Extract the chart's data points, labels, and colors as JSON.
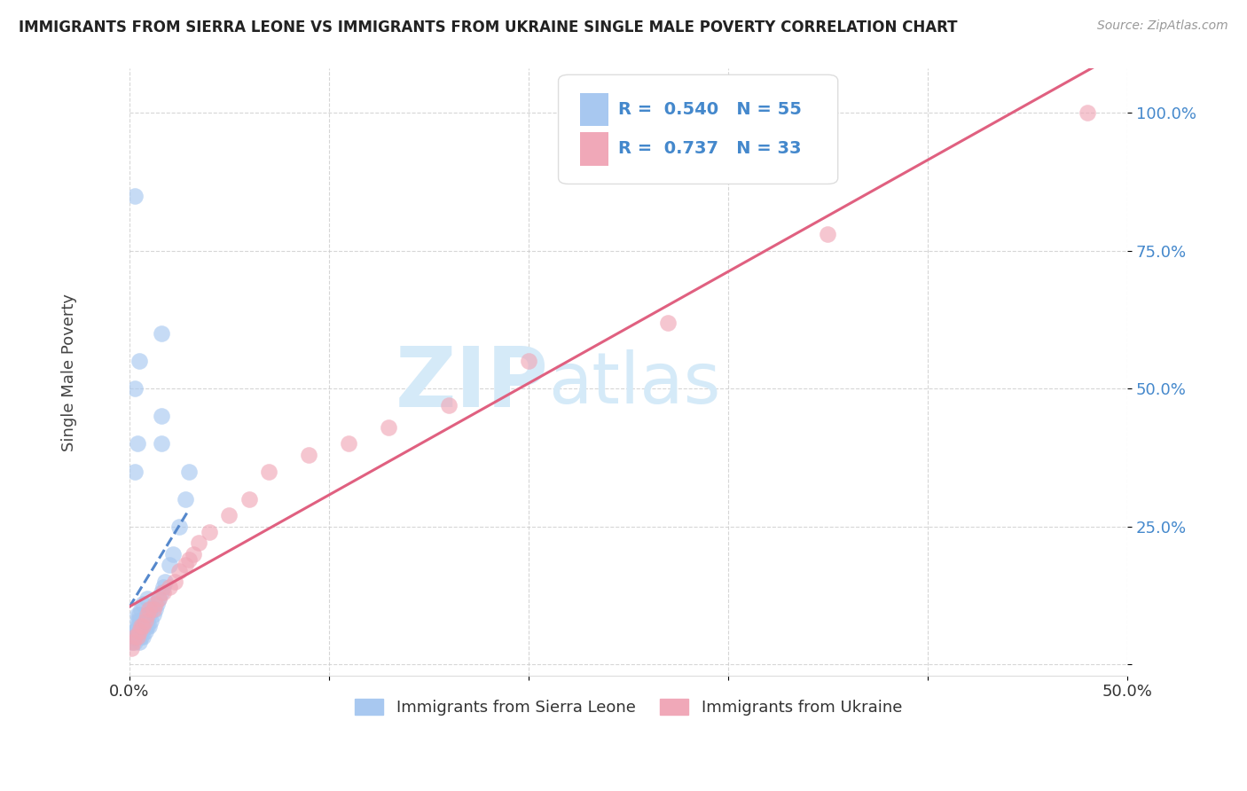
{
  "title": "IMMIGRANTS FROM SIERRA LEONE VS IMMIGRANTS FROM UKRAINE SINGLE MALE POVERTY CORRELATION CHART",
  "source": "Source: ZipAtlas.com",
  "ylabel": "Single Male Poverty",
  "xlim": [
    0.0,
    0.5
  ],
  "ylim": [
    -0.02,
    1.08
  ],
  "yticks": [
    0.0,
    0.25,
    0.5,
    0.75,
    1.0
  ],
  "ytick_labels": [
    "",
    "25.0%",
    "50.0%",
    "75.0%",
    "100.0%"
  ],
  "xtick_vals": [
    0.0,
    0.1,
    0.2,
    0.3,
    0.4,
    0.5
  ],
  "xtick_labels": [
    "0.0%",
    "",
    "",
    "",
    "",
    "50.0%"
  ],
  "sierra_leone_R": 0.54,
  "sierra_leone_N": 55,
  "ukraine_R": 0.737,
  "ukraine_N": 33,
  "sierra_leone_color": "#a8c8f0",
  "ukraine_color": "#f0a8b8",
  "sierra_leone_line_color": "#5588cc",
  "ukraine_line_color": "#e06080",
  "bg_color": "#ffffff",
  "watermark_zip": "ZIP",
  "watermark_atlas": "atlas",
  "watermark_color": "#d5eaf8",
  "legend_box_color": "#f8f8f8",
  "legend_border_color": "#dddddd",
  "tick_color": "#4488cc",
  "title_color": "#222222",
  "source_color": "#999999",
  "ylabel_color": "#444444",
  "sierra_leone_x": [
    0.001,
    0.002,
    0.002,
    0.003,
    0.003,
    0.003,
    0.004,
    0.004,
    0.004,
    0.004,
    0.004,
    0.005,
    0.005,
    0.005,
    0.005,
    0.005,
    0.005,
    0.006,
    0.006,
    0.006,
    0.006,
    0.007,
    0.007,
    0.007,
    0.007,
    0.008,
    0.008,
    0.008,
    0.009,
    0.009,
    0.009,
    0.01,
    0.01,
    0.011,
    0.011,
    0.012,
    0.013,
    0.014,
    0.015,
    0.016,
    0.017,
    0.018,
    0.02,
    0.022,
    0.025,
    0.028,
    0.03,
    0.003,
    0.004,
    0.016,
    0.016,
    0.003,
    0.005,
    0.016,
    0.003
  ],
  "sierra_leone_y": [
    0.04,
    0.05,
    0.06,
    0.04,
    0.05,
    0.06,
    0.05,
    0.06,
    0.07,
    0.08,
    0.09,
    0.04,
    0.05,
    0.06,
    0.07,
    0.08,
    0.09,
    0.05,
    0.06,
    0.07,
    0.1,
    0.05,
    0.07,
    0.08,
    0.11,
    0.06,
    0.07,
    0.09,
    0.07,
    0.08,
    0.12,
    0.07,
    0.09,
    0.08,
    0.1,
    0.09,
    0.1,
    0.11,
    0.12,
    0.13,
    0.14,
    0.15,
    0.18,
    0.2,
    0.25,
    0.3,
    0.35,
    0.35,
    0.4,
    0.4,
    0.45,
    0.5,
    0.55,
    0.6,
    0.85
  ],
  "ukraine_x": [
    0.001,
    0.002,
    0.003,
    0.004,
    0.005,
    0.006,
    0.007,
    0.008,
    0.009,
    0.01,
    0.012,
    0.013,
    0.015,
    0.017,
    0.02,
    0.023,
    0.025,
    0.028,
    0.03,
    0.032,
    0.035,
    0.04,
    0.05,
    0.06,
    0.07,
    0.09,
    0.11,
    0.13,
    0.16,
    0.2,
    0.27,
    0.35,
    0.48
  ],
  "ukraine_y": [
    0.03,
    0.04,
    0.05,
    0.05,
    0.06,
    0.07,
    0.07,
    0.08,
    0.09,
    0.1,
    0.1,
    0.11,
    0.12,
    0.13,
    0.14,
    0.15,
    0.17,
    0.18,
    0.19,
    0.2,
    0.22,
    0.24,
    0.27,
    0.3,
    0.35,
    0.38,
    0.4,
    0.43,
    0.47,
    0.55,
    0.62,
    0.78,
    1.0
  ]
}
